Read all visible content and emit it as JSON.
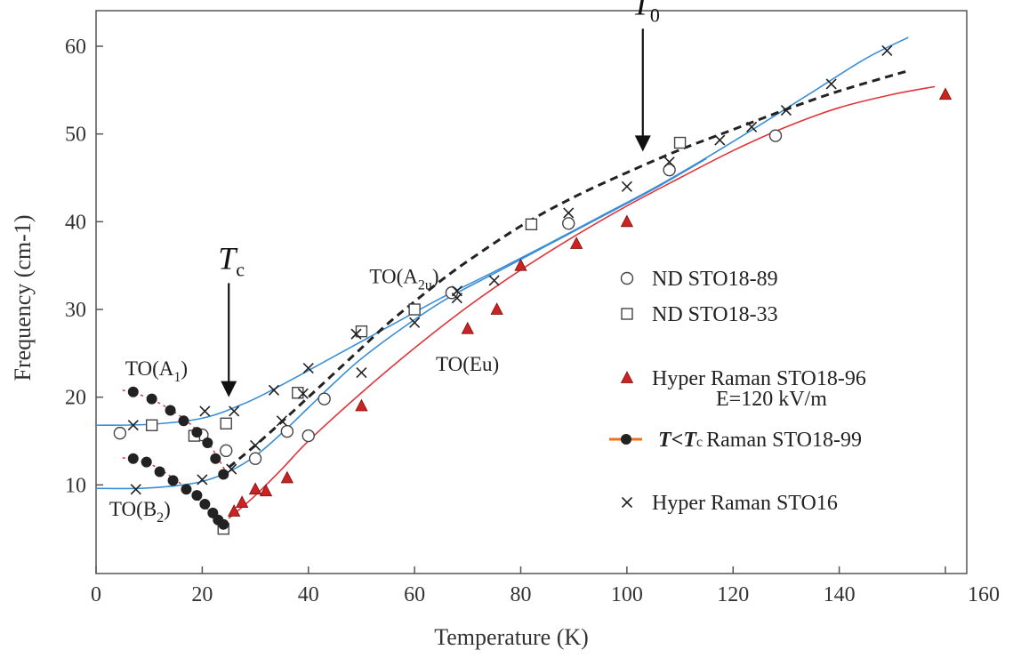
{
  "chart_data": {
    "type": "scatter",
    "xlabel": "Temperature (K)",
    "ylabel": "Frequency  (cm-1)",
    "xlim": [
      0,
      160
    ],
    "ylim": [
      0,
      65
    ],
    "xticks": [
      0,
      20,
      40,
      60,
      80,
      100,
      120,
      140,
      160
    ],
    "yticks": [
      10,
      20,
      30,
      40,
      50,
      60
    ],
    "grid": false,
    "legend_position": "right",
    "series": [
      {
        "name": "ND STO18-89",
        "marker": "open-circle",
        "color": "#444444",
        "points": [
          [
            4.5,
            15.9
          ],
          [
            20,
            15.7
          ],
          [
            24.5,
            13.9
          ],
          [
            30,
            13.0
          ],
          [
            36,
            16.1
          ],
          [
            40,
            15.6
          ],
          [
            43,
            19.8
          ],
          [
            67,
            31.9
          ],
          [
            89,
            39.8
          ],
          [
            108,
            45.9
          ],
          [
            128,
            49.8
          ]
        ]
      },
      {
        "name": "ND STO18-33",
        "marker": "open-square",
        "color": "#444444",
        "points": [
          [
            10.5,
            16.8
          ],
          [
            18.5,
            15.6
          ],
          [
            24.5,
            17.0
          ],
          [
            24,
            5.0
          ],
          [
            38,
            20.5
          ],
          [
            50,
            27.5
          ],
          [
            60,
            30.0
          ],
          [
            82,
            39.7
          ],
          [
            110,
            49.0
          ]
        ]
      },
      {
        "name": "Hyper Raman STO18-96",
        "sublabel": "E=120 kV/m",
        "marker": "filled-triangle",
        "color": "#cc2222",
        "points": [
          [
            26,
            7.0
          ],
          [
            27.5,
            8.0
          ],
          [
            30,
            9.5
          ],
          [
            32,
            9.3
          ],
          [
            36,
            10.8
          ],
          [
            50,
            19.0
          ],
          [
            70,
            27.8
          ],
          [
            75.5,
            30.0
          ],
          [
            80,
            35.0
          ],
          [
            90.5,
            37.5
          ],
          [
            100,
            40.0
          ],
          [
            160,
            54.5
          ]
        ]
      },
      {
        "name": "Raman STO18-99",
        "label_prefix": "T<T",
        "label_prefix_sub": "c",
        "marker": "filled-circle",
        "color": "#222222",
        "points": [
          [
            7,
            20.6
          ],
          [
            10.5,
            19.8
          ],
          [
            14,
            18.5
          ],
          [
            16.5,
            17.3
          ],
          [
            19,
            16.0
          ],
          [
            21,
            14.8
          ],
          [
            22.5,
            13.0
          ],
          [
            24,
            11.2
          ],
          [
            7,
            13.0
          ],
          [
            9.5,
            12.6
          ],
          [
            12,
            11.5
          ],
          [
            14.5,
            10.5
          ],
          [
            17,
            9.5
          ],
          [
            19,
            8.8
          ],
          [
            20.5,
            7.8
          ],
          [
            22,
            6.8
          ],
          [
            23,
            6.0
          ],
          [
            24,
            5.5
          ]
        ]
      },
      {
        "name": "Hyper Raman STO16",
        "marker": "cross",
        "color": "#222222",
        "points": [
          [
            7,
            16.8
          ],
          [
            7.5,
            9.5
          ],
          [
            20.5,
            18.4
          ],
          [
            20,
            10.6
          ],
          [
            26,
            18.4
          ],
          [
            25.5,
            11.8
          ],
          [
            30,
            14.5
          ],
          [
            33.5,
            20.8
          ],
          [
            35,
            17.3
          ],
          [
            39,
            20.4
          ],
          [
            40,
            23.3
          ],
          [
            49,
            27.2
          ],
          [
            50,
            22.8
          ],
          [
            60,
            28.5
          ],
          [
            68,
            32.1
          ],
          [
            68,
            31.3
          ],
          [
            75,
            33.3
          ],
          [
            89,
            41.0
          ],
          [
            100,
            44.0
          ],
          [
            108,
            46.8
          ],
          [
            117.5,
            49.3
          ],
          [
            123.5,
            50.8
          ],
          [
            130,
            52.7
          ],
          [
            138.5,
            55.7
          ],
          [
            149,
            59.5
          ]
        ]
      }
    ],
    "curves": [
      {
        "kind": "blue-upper",
        "color": "#3a8ed6",
        "points": [
          [
            0,
            16.8
          ],
          [
            10,
            16.9
          ],
          [
            20,
            17.6
          ],
          [
            28,
            19.3
          ],
          [
            35,
            21.4
          ],
          [
            45,
            24.7
          ],
          [
            55,
            28.0
          ],
          [
            65,
            31.3
          ],
          [
            75,
            34.3
          ],
          [
            85,
            37.4
          ],
          [
            95,
            40.6
          ],
          [
            105,
            43.8
          ],
          [
            115,
            47.3
          ],
          [
            125,
            51.0
          ],
          [
            135,
            54.8
          ],
          [
            145,
            58.6
          ],
          [
            153,
            61.0
          ]
        ]
      },
      {
        "kind": "blue-lower",
        "color": "#3a8ed6",
        "points": [
          [
            0,
            9.6
          ],
          [
            8,
            9.6
          ],
          [
            15,
            9.9
          ],
          [
            20,
            10.4
          ],
          [
            25,
            11.5
          ],
          [
            30,
            13.3
          ],
          [
            35,
            15.9
          ],
          [
            40,
            18.8
          ],
          [
            45,
            21.7
          ],
          [
            50,
            24.4
          ],
          [
            58,
            28.0
          ],
          [
            66,
            31.2
          ],
          [
            75,
            34.1
          ],
          [
            85,
            37.3
          ],
          [
            95,
            40.5
          ],
          [
            105,
            43.7
          ],
          [
            115,
            47.2
          ]
        ]
      },
      {
        "kind": "black-dashed",
        "color": "#222222",
        "dashed": true,
        "points": [
          [
            25,
            12.0
          ],
          [
            30,
            14.5
          ],
          [
            35,
            17.2
          ],
          [
            40,
            20.0
          ],
          [
            45,
            22.8
          ],
          [
            50,
            25.6
          ],
          [
            55,
            28.4
          ],
          [
            60,
            30.9
          ],
          [
            65,
            33.3
          ],
          [
            70,
            35.5
          ],
          [
            80,
            39.5
          ],
          [
            90,
            42.8
          ],
          [
            100,
            45.6
          ],
          [
            110,
            48.2
          ],
          [
            120,
            50.5
          ],
          [
            130,
            52.8
          ],
          [
            140,
            54.9
          ],
          [
            153,
            57.2
          ]
        ]
      },
      {
        "kind": "red-solid",
        "color": "#e0343a",
        "points": [
          [
            25,
            6.2
          ],
          [
            27,
            7.2
          ],
          [
            30,
            8.8
          ],
          [
            35,
            11.8
          ],
          [
            40,
            15.0
          ],
          [
            50,
            20.5
          ],
          [
            60,
            25.6
          ],
          [
            70,
            30.3
          ],
          [
            80,
            34.5
          ],
          [
            90,
            38.3
          ],
          [
            100,
            41.8
          ],
          [
            110,
            45.0
          ],
          [
            120,
            48.1
          ],
          [
            130,
            50.8
          ],
          [
            140,
            53.0
          ],
          [
            150,
            54.5
          ],
          [
            158,
            55.4
          ]
        ]
      },
      {
        "kind": "red-dotted-upper",
        "color": "#e0343a",
        "dotted": true,
        "points": [
          [
            5,
            20.8
          ],
          [
            10,
            19.9
          ],
          [
            15,
            18.2
          ],
          [
            18,
            16.8
          ],
          [
            21,
            14.9
          ],
          [
            24,
            12.0
          ],
          [
            25,
            10.8
          ]
        ]
      },
      {
        "kind": "red-dotted-lower",
        "color": "#e0343a",
        "dotted": true,
        "points": [
          [
            5,
            13.1
          ],
          [
            10,
            12.4
          ],
          [
            14,
            11.0
          ],
          [
            17,
            9.6
          ],
          [
            20,
            7.9
          ],
          [
            22,
            6.6
          ],
          [
            24,
            5.5
          ]
        ]
      }
    ],
    "annotations": [
      {
        "text": "TO(A",
        "sub": "1",
        "suffix": ")",
        "x": 5.5,
        "y": 22.5
      },
      {
        "text": "TO(B",
        "sub": "2",
        "suffix": ")",
        "x": 2.5,
        "y": 6.5
      },
      {
        "text": "TO(A",
        "sub": "2u",
        "suffix": ")",
        "x": 51.5,
        "y": 33.0
      },
      {
        "text": "TO(Eu)",
        "x": 64,
        "y": 23.0
      }
    ],
    "arrows": [
      {
        "label": "T",
        "label_sub": "c",
        "x": 25,
        "y_from": 33,
        "y_to": 20
      },
      {
        "label": "T",
        "label_sub": "0",
        "x": 103,
        "y_from": 62,
        "y_to": 48
      }
    ]
  },
  "page": {
    "background": "#ffffff"
  }
}
